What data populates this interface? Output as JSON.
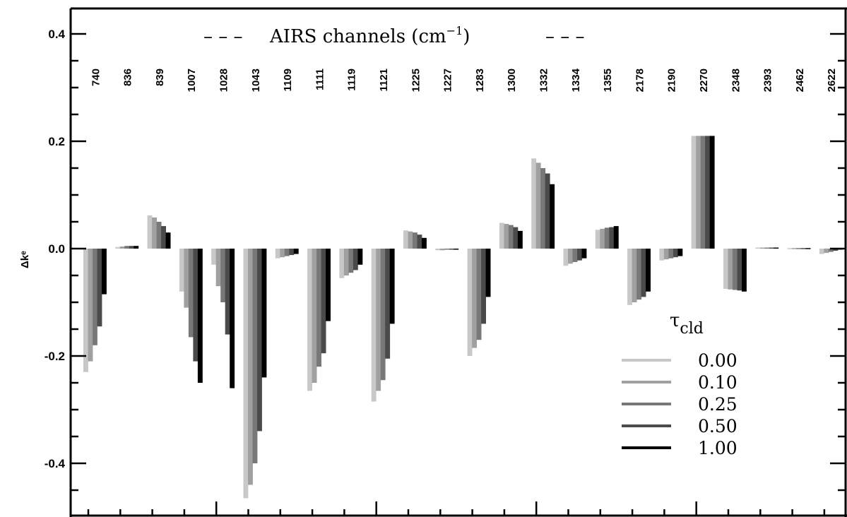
{
  "chart_data": {
    "type": "bar",
    "title": "--- AIRS channels (cm⁻¹) ---",
    "title_parts": {
      "dashes_left": "– – –",
      "text": "AIRS channels (cm",
      "sup": "−1",
      "close": ")",
      "dashes_right": "– – –"
    },
    "xlabel": "",
    "ylabel": "Δkᵉ",
    "ylim": [
      -0.5,
      0.45
    ],
    "yticks": [
      -0.4,
      -0.2,
      0.0,
      0.2,
      0.4
    ],
    "ytick_labels": [
      "-0.4",
      "-0.2",
      "0.0",
      "0.2",
      "0.4"
    ],
    "categories": [
      "740",
      "836",
      "839",
      "1007",
      "1028",
      "1043",
      "1109",
      "1111",
      "1119",
      "1121",
      "1225",
      "1227",
      "1283",
      "1300",
      "1332",
      "1334",
      "1355",
      "2178",
      "2190",
      "2270",
      "2348",
      "2393",
      "2462",
      "2622"
    ],
    "legend": {
      "title": "τ",
      "title_sub": "cld",
      "position": "bottom-right"
    },
    "series": [
      {
        "name": "0.00",
        "color": "#c8c8c8",
        "values": [
          -0.23,
          0.003,
          0.062,
          -0.08,
          -0.03,
          -0.465,
          -0.018,
          -0.265,
          -0.055,
          -0.285,
          0.034,
          -0.003,
          -0.2,
          0.048,
          0.168,
          -0.032,
          0.035,
          -0.105,
          -0.022,
          0.21,
          -0.075,
          0.002,
          0.001,
          -0.01
        ]
      },
      {
        "name": "0.10",
        "color": "#a0a0a0",
        "values": [
          -0.21,
          0.004,
          0.058,
          -0.11,
          -0.07,
          -0.44,
          -0.016,
          -0.25,
          -0.05,
          -0.265,
          0.032,
          -0.003,
          -0.185,
          0.046,
          0.16,
          -0.028,
          0.037,
          -0.1,
          -0.02,
          0.21,
          -0.076,
          0.002,
          0.001,
          -0.008
        ]
      },
      {
        "name": "0.25",
        "color": "#787878",
        "values": [
          -0.18,
          0.005,
          0.05,
          -0.165,
          -0.1,
          -0.4,
          -0.014,
          -0.22,
          -0.045,
          -0.245,
          0.03,
          -0.002,
          -0.17,
          0.044,
          0.15,
          -0.025,
          0.039,
          -0.095,
          -0.018,
          0.21,
          -0.077,
          0.002,
          0.001,
          -0.006
        ]
      },
      {
        "name": "0.50",
        "color": "#4a4a4a",
        "values": [
          -0.145,
          0.005,
          0.042,
          -0.21,
          -0.16,
          -0.34,
          -0.012,
          -0.195,
          -0.04,
          -0.205,
          0.026,
          -0.002,
          -0.14,
          0.04,
          0.14,
          -0.022,
          0.04,
          -0.09,
          -0.016,
          0.21,
          -0.078,
          0.002,
          0.001,
          -0.004
        ]
      },
      {
        "name": "1.00",
        "color": "#000000",
        "values": [
          -0.085,
          0.005,
          0.03,
          -0.25,
          -0.26,
          -0.24,
          -0.01,
          -0.135,
          -0.03,
          -0.14,
          0.02,
          -0.002,
          -0.09,
          0.033,
          0.12,
          -0.018,
          0.042,
          -0.08,
          -0.014,
          0.21,
          -0.08,
          0.002,
          0.001,
          -0.002
        ]
      }
    ],
    "grid": false
  }
}
